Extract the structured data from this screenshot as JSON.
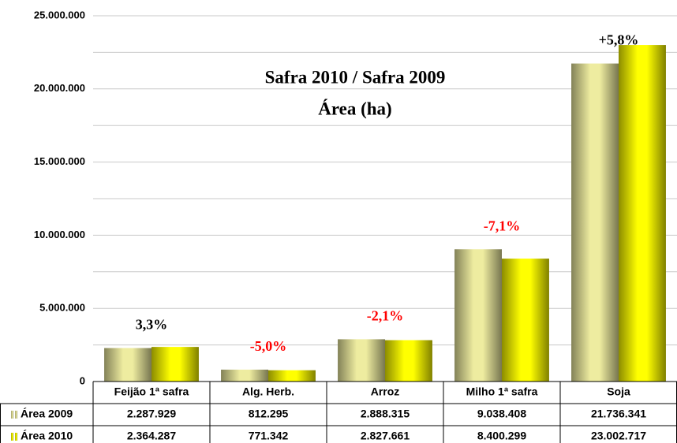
{
  "chart_data": {
    "type": "bar",
    "title": "Safra 2010 / Safra 2009",
    "subtitle": "Área (ha)",
    "categories": [
      "Feijão 1ª safra",
      "Alg. Herb.",
      "Arroz",
      "Milho 1ª safra",
      "Soja"
    ],
    "series": [
      {
        "name": "Área 2009",
        "color": "#eeeca0",
        "values": [
          2287929,
          812295,
          2888315,
          9038408,
          21736341
        ],
        "value_labels": [
          "2.287.929",
          "812.295",
          "2.888.315",
          "9.038.408",
          "21.736.341"
        ]
      },
      {
        "name": "Área 2010",
        "color": "#ffff00",
        "values": [
          2364287,
          771342,
          2827661,
          8400299,
          23002717
        ],
        "value_labels": [
          "2.364.287",
          "771.342",
          "2.827.661",
          "8.400.299",
          "23.002.717"
        ]
      }
    ],
    "annotations": [
      {
        "text": "3,3%",
        "color": "#000000"
      },
      {
        "text": "-5,0%",
        "color": "#ff0000"
      },
      {
        "text": "-2,1%",
        "color": "#ff0000"
      },
      {
        "text": "-7,1%",
        "color": "#ff0000"
      },
      {
        "text": "+5,8%",
        "color": "#000000"
      }
    ],
    "ylim": [
      0,
      25000000
    ],
    "yticks": [
      0,
      {
        "value": 5000000,
        "label": "5.000.000"
      },
      {
        "value": 10000000,
        "label": "10.000.000"
      },
      {
        "value": 15000000,
        "label": "15.000.000"
      },
      {
        "value": 20000000,
        "label": "20.000.000"
      },
      {
        "value": 25000000,
        "label": "25.000.000"
      }
    ],
    "minor_gridlines": [
      2500000,
      7500000,
      12500000,
      17500000,
      22500000
    ],
    "grid": true,
    "data_table": true
  }
}
